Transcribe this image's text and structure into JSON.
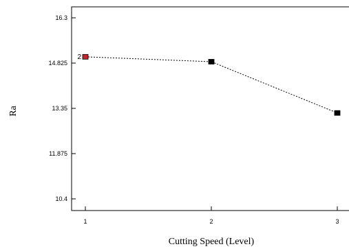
{
  "chart_data": {
    "type": "line",
    "xlabel": "Cutting Speed (Level)",
    "ylabel": "Ra",
    "x": [
      1,
      2,
      3
    ],
    "series": [
      {
        "values": [
          15.03,
          14.87,
          13.2
        ],
        "point_colors": [
          "#c0262d",
          "#000000",
          "#000000"
        ],
        "line_style": "dashed"
      }
    ],
    "xticks": [
      "1",
      "2",
      "3"
    ],
    "yticks": [
      "10.4",
      "11.875",
      "13.35",
      "14.825",
      "16.3"
    ],
    "ylim": [
      10.4,
      16.3
    ],
    "annotations": [
      {
        "x": 1,
        "y": 15.03,
        "text": "2"
      }
    ],
    "grid": false
  }
}
